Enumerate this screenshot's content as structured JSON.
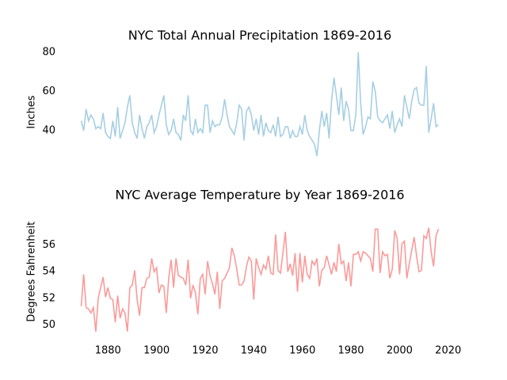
{
  "chart_data": [
    {
      "type": "line",
      "title": "NYC Total Annual Precipitation 1869-2016",
      "y_label": "Inches",
      "x": [
        1869,
        1870,
        1871,
        1872,
        1873,
        1874,
        1875,
        1876,
        1877,
        1878,
        1879,
        1880,
        1881,
        1882,
        1883,
        1884,
        1885,
        1886,
        1887,
        1888,
        1889,
        1890,
        1891,
        1892,
        1893,
        1894,
        1895,
        1896,
        1897,
        1898,
        1899,
        1900,
        1901,
        1902,
        1903,
        1904,
        1905,
        1906,
        1907,
        1908,
        1909,
        1910,
        1911,
        1912,
        1913,
        1914,
        1915,
        1916,
        1917,
        1918,
        1919,
        1920,
        1921,
        1922,
        1923,
        1924,
        1925,
        1926,
        1927,
        1928,
        1929,
        1930,
        1931,
        1932,
        1933,
        1934,
        1935,
        1936,
        1937,
        1938,
        1939,
        1940,
        1941,
        1942,
        1943,
        1944,
        1945,
        1946,
        1947,
        1948,
        1949,
        1950,
        1951,
        1952,
        1953,
        1954,
        1955,
        1956,
        1957,
        1958,
        1959,
        1960,
        1961,
        1962,
        1963,
        1964,
        1965,
        1966,
        1967,
        1968,
        1969,
        1970,
        1971,
        1972,
        1973,
        1974,
        1975,
        1976,
        1977,
        1978,
        1979,
        1980,
        1981,
        1982,
        1983,
        1984,
        1985,
        1986,
        1987,
        1988,
        1989,
        1990,
        1991,
        1992,
        1993,
        1994,
        1995,
        1996,
        1997,
        1998,
        1999,
        2000,
        2001,
        2002,
        2003,
        2004,
        2005,
        2006,
        2007,
        2008,
        2009,
        2010,
        2011,
        2012,
        2013,
        2014,
        2015,
        2016
      ],
      "series": [
        {
          "color": "#a6cee3",
          "values": [
            45,
            40,
            51,
            45,
            48,
            46,
            41,
            42,
            41,
            49,
            39,
            37,
            36,
            45,
            37,
            52,
            36,
            40,
            44,
            52,
            58,
            44,
            39,
            36,
            48,
            41,
            36,
            42,
            44,
            48,
            39,
            42,
            48,
            53,
            58,
            43,
            38,
            40,
            46,
            39,
            38,
            35,
            48,
            45,
            58,
            40,
            38,
            46,
            39,
            41,
            39,
            53,
            53,
            39,
            45,
            42,
            43,
            43,
            47,
            56,
            48,
            42,
            40,
            38,
            44,
            53,
            51,
            35,
            50,
            52,
            48,
            40,
            46,
            38,
            48,
            37,
            44,
            40,
            39,
            43,
            37,
            47,
            37,
            38,
            42,
            42,
            36,
            40,
            37,
            37,
            42,
            38,
            48,
            40,
            37,
            35,
            33,
            27,
            40,
            50,
            42,
            49,
            36,
            55,
            67,
            58,
            48,
            62,
            45,
            55,
            51,
            40,
            40,
            48,
            80,
            54,
            38,
            42,
            47,
            46,
            65,
            60,
            47,
            45,
            44,
            46,
            48,
            41,
            50,
            39,
            43,
            46,
            42,
            58,
            52,
            46,
            55,
            61,
            62,
            54,
            53,
            53,
            73,
            39,
            46,
            54,
            42,
            43
          ]
        }
      ],
      "xlim": [
        1861.65,
        2023.35
      ],
      "ylim": [
        15.5,
        83.4
      ],
      "yticks": [
        40,
        60,
        80
      ]
    },
    {
      "type": "line",
      "title": "NYC Average Temperature by Year 1869-2016",
      "y_label": "Degrees Fahrenheit",
      "x": [
        1869,
        1870,
        1871,
        1872,
        1873,
        1874,
        1875,
        1876,
        1877,
        1878,
        1879,
        1880,
        1881,
        1882,
        1883,
        1884,
        1885,
        1886,
        1887,
        1888,
        1889,
        1890,
        1891,
        1892,
        1893,
        1894,
        1895,
        1896,
        1897,
        1898,
        1899,
        1900,
        1901,
        1902,
        1903,
        1904,
        1905,
        1906,
        1907,
        1908,
        1909,
        1910,
        1911,
        1912,
        1913,
        1914,
        1915,
        1916,
        1917,
        1918,
        1919,
        1920,
        1921,
        1922,
        1923,
        1924,
        1925,
        1926,
        1927,
        1928,
        1929,
        1930,
        1931,
        1932,
        1933,
        1934,
        1935,
        1936,
        1937,
        1938,
        1939,
        1940,
        1941,
        1942,
        1943,
        1944,
        1945,
        1946,
        1947,
        1948,
        1949,
        1950,
        1951,
        1952,
        1953,
        1954,
        1955,
        1956,
        1957,
        1958,
        1959,
        1960,
        1961,
        1962,
        1963,
        1964,
        1965,
        1966,
        1967,
        1968,
        1969,
        1970,
        1971,
        1972,
        1973,
        1974,
        1975,
        1976,
        1977,
        1978,
        1979,
        1980,
        1981,
        1982,
        1983,
        1984,
        1985,
        1986,
        1987,
        1988,
        1989,
        1990,
        1991,
        1992,
        1993,
        1994,
        1995,
        1996,
        1997,
        1998,
        1999,
        2000,
        2001,
        2002,
        2003,
        2004,
        2005,
        2006,
        2007,
        2008,
        2009,
        2010,
        2011,
        2012,
        2013,
        2014,
        2015,
        2016
      ],
      "series": [
        {
          "color": "#fb9a99",
          "values": [
            51.4,
            53.8,
            51.3,
            51.2,
            50.9,
            51.3,
            49.5,
            52.0,
            52.8,
            53.6,
            52.1,
            52.8,
            52.0,
            51.9,
            50.2,
            52.2,
            50.5,
            51.2,
            50.9,
            49.5,
            52.8,
            53.0,
            54.1,
            51.9,
            50.7,
            52.8,
            52.8,
            53.5,
            53.6,
            55.0,
            54.0,
            54.3,
            52.4,
            53.0,
            52.9,
            50.9,
            53.5,
            54.9,
            52.8,
            55.0,
            53.7,
            53.6,
            53.5,
            53.0,
            54.9,
            52.0,
            53.0,
            52.4,
            50.8,
            53.5,
            53.8,
            52.3,
            54.8,
            53.7,
            53.1,
            52.3,
            54.0,
            51.2,
            53.3,
            53.5,
            53.9,
            54.3,
            55.8,
            55.2,
            54.2,
            53.0,
            53.0,
            53.3,
            54.4,
            55.1,
            54.8,
            51.9,
            55.0,
            54.3,
            53.8,
            54.5,
            54.2,
            55.2,
            53.9,
            53.8,
            56.8,
            54.1,
            53.9,
            55.4,
            57.0,
            54.0,
            54.6,
            53.7,
            55.4,
            52.5,
            55.4,
            53.2,
            55.2,
            53.8,
            53.5,
            54.8,
            54.5,
            55.0,
            52.9,
            54.1,
            54.3,
            55.2,
            54.5,
            53.8,
            54.7,
            54.0,
            56.1,
            54.6,
            54.8,
            53.3,
            54.7,
            52.9,
            55.3,
            55.3,
            55.5,
            54.8,
            55.5,
            55.4,
            55.2,
            55.0,
            54.0,
            57.2,
            57.2,
            53.9,
            55.5,
            55.2,
            55.3,
            53.5,
            54.2,
            57.1,
            56.5,
            53.8,
            56.1,
            56.3,
            53.5,
            54.6,
            55.6,
            56.6,
            55.2,
            54.0,
            54.1,
            56.7,
            56.5,
            57.3,
            55.5,
            54.4,
            56.7,
            57.2
          ]
        }
      ],
      "xlim": [
        1861.65,
        2023.35
      ],
      "ylim": [
        49.0,
        59.0
      ],
      "yticks": [
        50,
        52,
        54,
        56
      ],
      "xticks": [
        1880,
        1900,
        1920,
        1940,
        1960,
        1980,
        2000,
        2020
      ]
    }
  ]
}
